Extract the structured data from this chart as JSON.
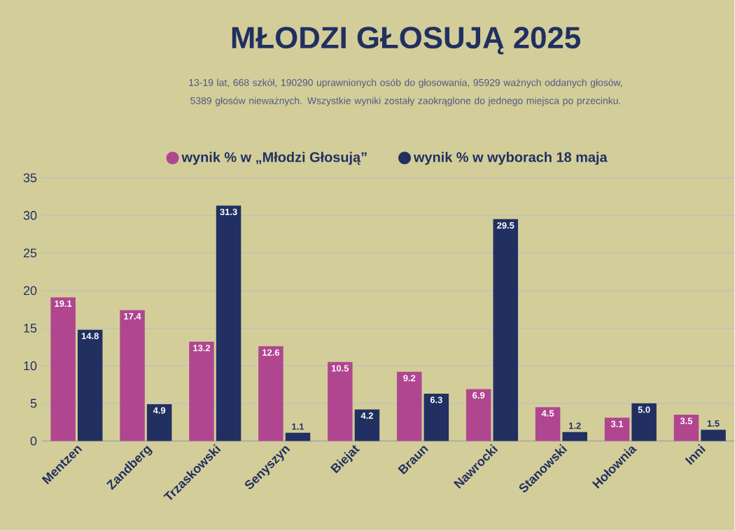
{
  "chart_data": {
    "type": "bar",
    "title": "MŁODZI GŁOSUJĄ 2025",
    "subtitle": "13-19 lat, 668 szkół, 190290 uprawnionych osób do głosowania, 95929 ważnych oddanych głosów, 5389 głosów nieważnych. Wszystkie wyniki zostały zaokrąglone do jednego miejsca po przecinku.",
    "categories": [
      "Mentzen",
      "Zandberg",
      "Trzaskowski",
      "Senyszyn",
      "Biejat",
      "Braun",
      "Nawrocki",
      "Stanowski",
      "Hołownia",
      "Inni"
    ],
    "series": [
      {
        "name": "wynik % w „Młodzi Głosują”",
        "color": "#b0468f",
        "values": [
          19.1,
          17.4,
          13.2,
          12.6,
          10.5,
          9.2,
          6.9,
          4.5,
          3.1,
          3.5
        ],
        "value_labels": [
          "19.1",
          "17.4",
          "13.2",
          "12.6",
          "10.5",
          "9.2",
          "6.9",
          "4.5",
          "3.1",
          "3.5"
        ]
      },
      {
        "name": "wynik % w wyborach 18 maja",
        "color": "#213060",
        "values": [
          14.8,
          4.9,
          31.3,
          1.1,
          4.2,
          6.3,
          29.5,
          1.2,
          5.0,
          1.5
        ],
        "value_labels": [
          "14.8",
          "4.9",
          "31.3",
          "1.1",
          "4.2",
          "6.3",
          "29.5",
          "1.2",
          "5.0",
          "1.5"
        ]
      }
    ],
    "ylim": [
      0,
      35
    ],
    "yticks": [
      0,
      5,
      10,
      15,
      20,
      25,
      30,
      35
    ],
    "grid": "y",
    "legend": "top"
  }
}
